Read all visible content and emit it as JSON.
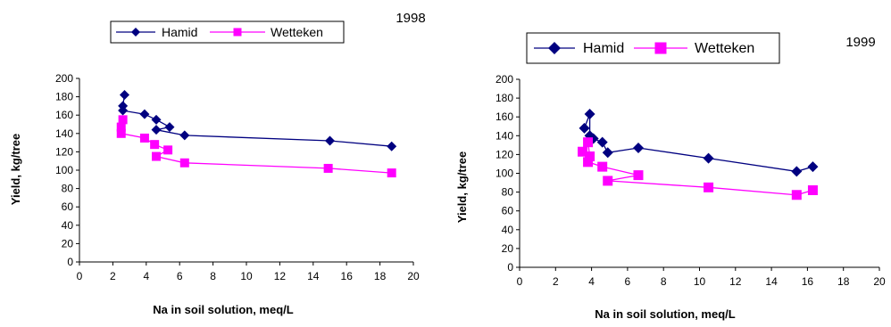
{
  "colors": {
    "hamid": "#000080",
    "wetteken": "#FF00FF",
    "axis": "#000000"
  },
  "chart_data": [
    {
      "type": "line",
      "title": "1998",
      "xlabel": "Na in soil solution, meq/L",
      "ylabel": "Yield, kg/tree",
      "xlim": [
        0,
        20
      ],
      "ylim": [
        0,
        200
      ],
      "xticks": [
        "0",
        "2",
        "4",
        "6",
        "8",
        "10",
        "12",
        "14",
        "16",
        "18",
        "20"
      ],
      "yticks": [
        "0",
        "20",
        "40",
        "60",
        "80",
        "100",
        "120",
        "140",
        "160",
        "180",
        "200"
      ],
      "grid": false,
      "legend_position": "top",
      "series": [
        {
          "name": "Hamid",
          "marker": "diamond",
          "points": [
            [
              2.7,
              182
            ],
            [
              2.6,
              170
            ],
            [
              2.6,
              165
            ],
            [
              3.9,
              161
            ],
            [
              4.6,
              155
            ],
            [
              5.4,
              147
            ],
            [
              4.6,
              144
            ],
            [
              6.3,
              138
            ],
            [
              15.0,
              132
            ],
            [
              18.7,
              126
            ]
          ]
        },
        {
          "name": "Wetteken",
          "marker": "square",
          "points": [
            [
              2.6,
              155
            ],
            [
              2.5,
              147
            ],
            [
              2.5,
              140
            ],
            [
              3.9,
              135
            ],
            [
              4.5,
              128
            ],
            [
              5.3,
              122
            ],
            [
              4.6,
              115
            ],
            [
              6.3,
              108
            ],
            [
              14.9,
              102
            ],
            [
              18.7,
              97
            ]
          ]
        }
      ]
    },
    {
      "type": "line",
      "title": "1999",
      "xlabel": "Na in soil solution, meq/L",
      "ylabel": "Yield, kg/tree",
      "xlim": [
        0,
        20
      ],
      "ylim": [
        0,
        200
      ],
      "xticks": [
        "0",
        "2",
        "4",
        "6",
        "8",
        "10",
        "12",
        "14",
        "16",
        "18",
        "20"
      ],
      "yticks": [
        "0",
        "20",
        "40",
        "60",
        "80",
        "100",
        "120",
        "140",
        "160",
        "180",
        "200"
      ],
      "grid": false,
      "legend_position": "top",
      "series": [
        {
          "name": "Hamid",
          "marker": "diamond",
          "points": [
            [
              3.6,
              148
            ],
            [
              3.9,
              163
            ],
            [
              3.9,
              140
            ],
            [
              4.1,
              137
            ],
            [
              4.6,
              133
            ],
            [
              4.9,
              122
            ],
            [
              6.6,
              127
            ],
            [
              10.5,
              116
            ],
            [
              15.4,
              102
            ],
            [
              16.3,
              107
            ]
          ]
        },
        {
          "name": "Wetteken",
          "marker": "square",
          "points": [
            [
              3.5,
              123
            ],
            [
              3.8,
              133
            ],
            [
              3.9,
              118
            ],
            [
              3.8,
              112
            ],
            [
              4.6,
              107
            ],
            [
              6.6,
              98
            ],
            [
              4.9,
              92
            ],
            [
              10.5,
              85
            ],
            [
              15.4,
              77
            ],
            [
              16.3,
              82
            ]
          ]
        }
      ]
    }
  ]
}
